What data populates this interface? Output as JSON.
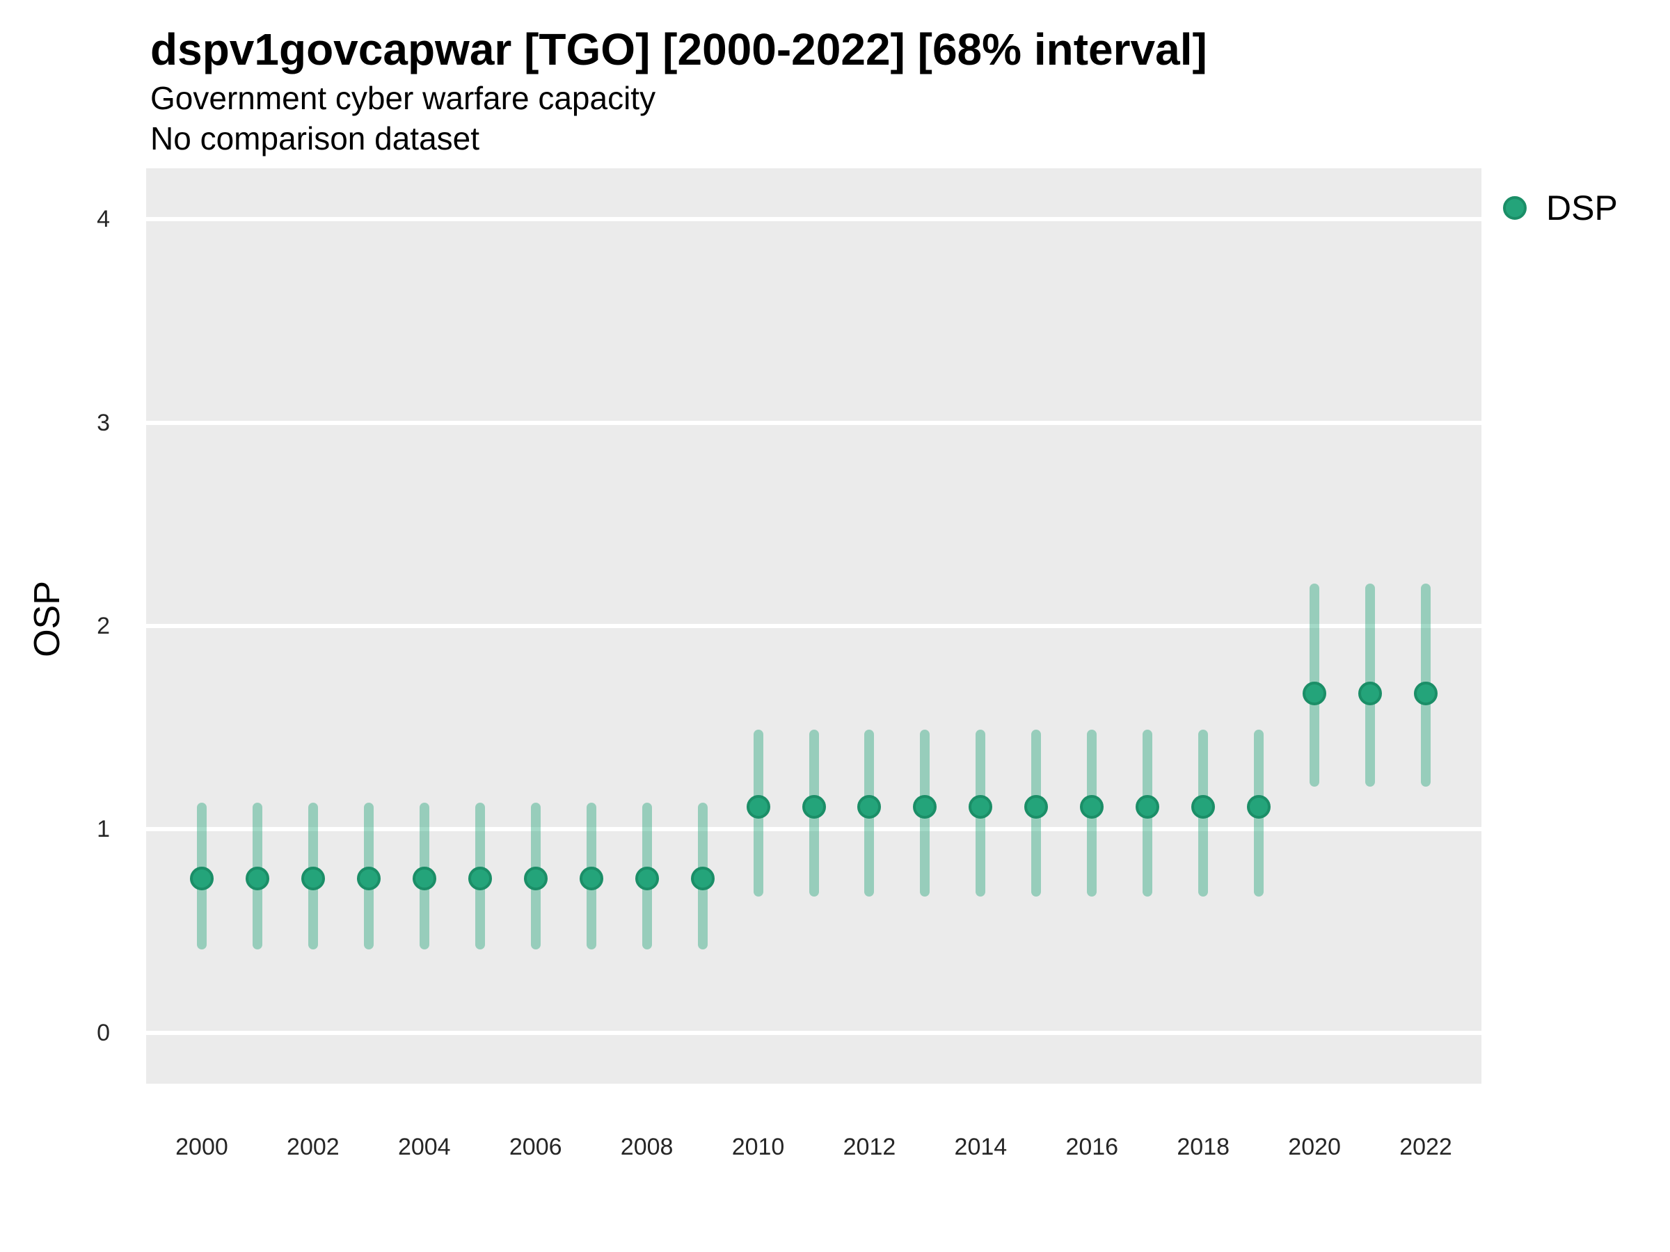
{
  "header": {
    "title": "dspv1govcapwar [TGO] [2000-2022] [68% interval]",
    "subtitle_line1": "Government cyber warfare capacity",
    "subtitle_line2": "No comparison dataset"
  },
  "legend": {
    "label": "DSP",
    "position": "right"
  },
  "colors": {
    "point_fill": "#24a47a",
    "point_stroke": "#1b8e67",
    "interval_bar": "rgba(36, 164, 122, 0.42)",
    "panel_background": "#ebebeb",
    "gridline": "#ffffff",
    "text": "#000000",
    "tick_text": "#262626"
  },
  "chart_data": {
    "type": "scatter",
    "title": "dspv1govcapwar [TGO] [2000-2022] [68% interval]",
    "subtitle": [
      "Government cyber warfare capacity",
      "No comparison dataset"
    ],
    "interval_level": "68%",
    "xlabel": "",
    "ylabel": "OSP",
    "grid": "horizontal-major-only",
    "legend_position": "right",
    "xlim": [
      1999,
      2023
    ],
    "ylim": [
      -0.25,
      4.25
    ],
    "yticks": [
      0,
      1,
      2,
      3,
      4
    ],
    "xticks": [
      2000,
      2002,
      2004,
      2006,
      2008,
      2010,
      2012,
      2014,
      2016,
      2018,
      2020,
      2022
    ],
    "x": [
      2000,
      2001,
      2002,
      2003,
      2004,
      2005,
      2006,
      2007,
      2008,
      2009,
      2010,
      2011,
      2012,
      2013,
      2014,
      2015,
      2016,
      2017,
      2018,
      2019,
      2020,
      2021,
      2022
    ],
    "series": [
      {
        "name": "DSP",
        "values": [
          0.76,
          0.76,
          0.76,
          0.76,
          0.76,
          0.76,
          0.76,
          0.76,
          0.76,
          0.76,
          1.11,
          1.11,
          1.11,
          1.11,
          1.11,
          1.11,
          1.11,
          1.11,
          1.11,
          1.11,
          1.67,
          1.67,
          1.67
        ],
        "lower": [
          0.41,
          0.41,
          0.41,
          0.41,
          0.41,
          0.41,
          0.41,
          0.41,
          0.41,
          0.41,
          0.67,
          0.67,
          0.67,
          0.67,
          0.67,
          0.67,
          0.67,
          0.67,
          0.67,
          0.67,
          1.21,
          1.21,
          1.21
        ],
        "upper": [
          1.13,
          1.13,
          1.13,
          1.13,
          1.13,
          1.13,
          1.13,
          1.13,
          1.13,
          1.13,
          1.49,
          1.49,
          1.49,
          1.49,
          1.49,
          1.49,
          1.49,
          1.49,
          1.49,
          1.49,
          2.21,
          2.21,
          2.21
        ]
      }
    ]
  }
}
